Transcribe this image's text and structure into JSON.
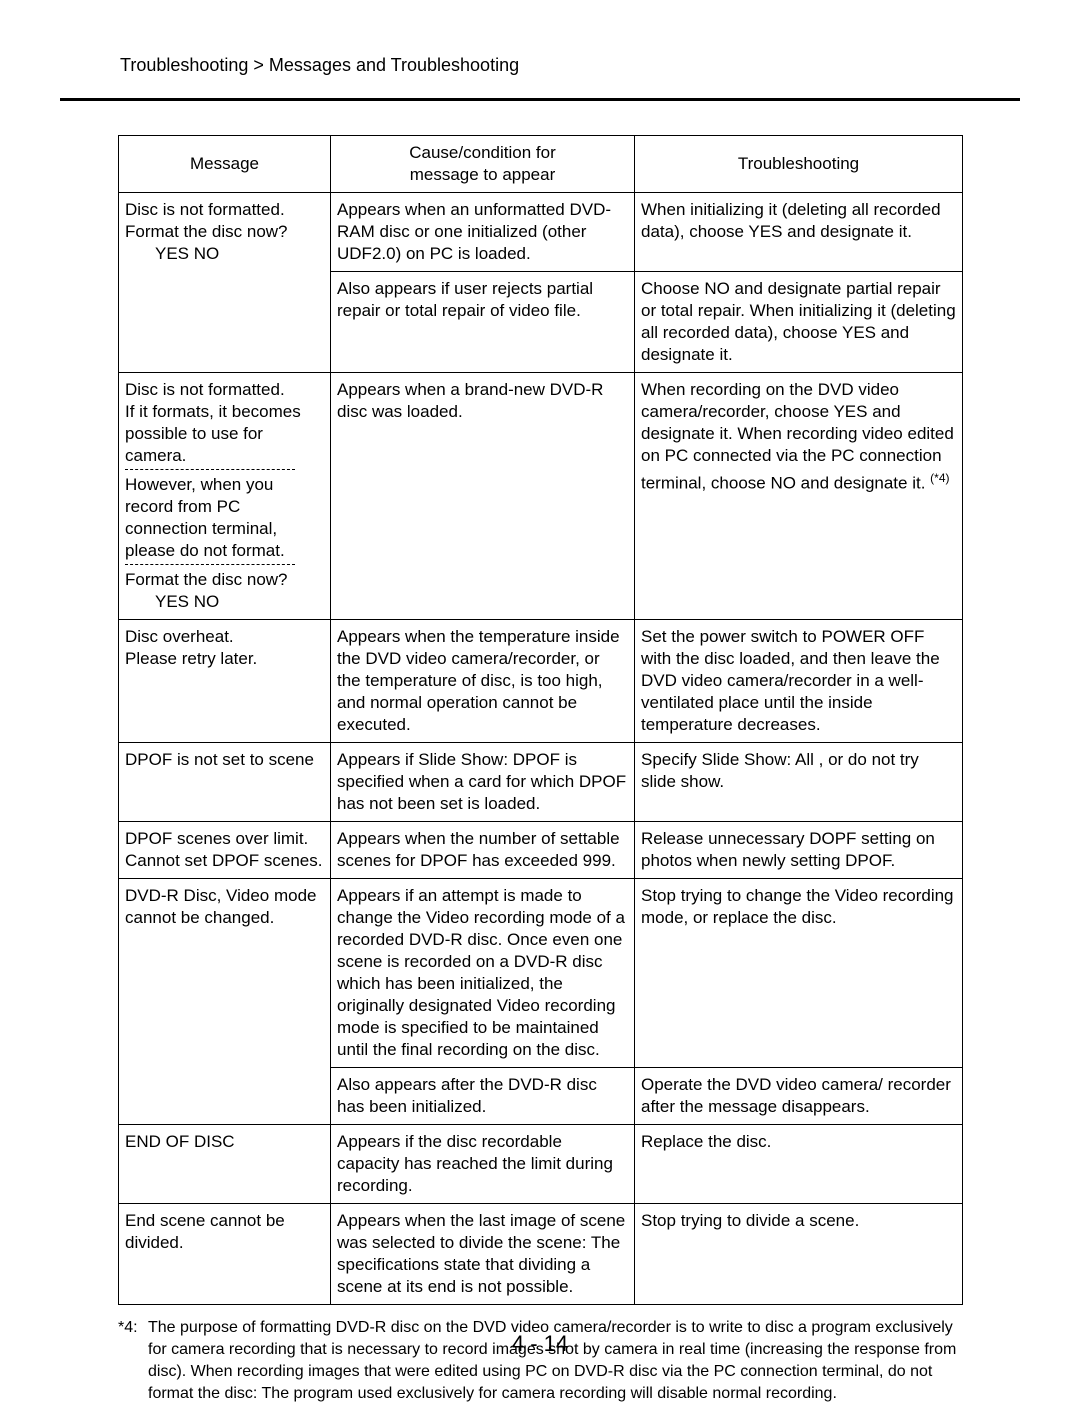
{
  "breadcrumb": "Troubleshooting > Messages and Troubleshooting",
  "headers": {
    "message": "Message",
    "cause_l1": "Cause/condition for",
    "cause_l2": "message to appear",
    "trouble": "Troubleshooting"
  },
  "rows": {
    "r1": {
      "msg_l1": "Disc is not formatted.",
      "msg_l2": "Format the disc now?",
      "msg_l3": "YES   NO",
      "cause": "Appears when an unformatted DVD-RAM disc or one initialized (other UDF2.0) on PC is loaded.",
      "trouble": "When initializing it (deleting all recorded data), choose  YES  and designate it."
    },
    "r1b": {
      "cause": "Also appears if user rejects partial repair or total repair of video file.",
      "trouble": "Choose  NO  and designate partial repair or total repair. When initializing it (deleting all recorded data), choose  YES  and designate it."
    },
    "r2": {
      "msg_p1_l1": "Disc is not formatted.",
      "msg_p1_l2": "If it formats, it becomes",
      "msg_p1_l3": "possible to use for camera.",
      "msg_p2_l1": "However, when you record from PC connection terminal, please do not format.",
      "msg_p3_l1": "Format the disc now?",
      "msg_p3_l2": "YES   NO",
      "cause": "Appears when a brand-new DVD-R disc was loaded.",
      "trouble_pre": "When recording on the DVD video camera/recorder, choose  YES  and designate it. When recording video edited on PC connected via the PC connection terminal, choose  NO  and designate it. ",
      "trouble_sup": "(*4)"
    },
    "r3": {
      "msg_l1": "Disc overheat.",
      "msg_l2": "Please retry later.",
      "cause": "Appears when the temperature inside the DVD video camera/recorder, or the temperature of disc, is too high, and normal operation cannot be executed.",
      "trouble": "Set the power switch to  POWER OFF  with the disc loaded, and then leave the DVD video camera/recorder in a well-ventilated place until the inside temperature decreases."
    },
    "r4": {
      "msg": "DPOF is not set to scene",
      "cause": "Appears if  Slide Show: DPOF  is specified when a card for which DPOF has not been set is loaded.",
      "trouble": "Specify  Slide Show: All , or do not try slide show."
    },
    "r5": {
      "msg_l1": "DPOF scenes over limit.",
      "msg_l2": "Cannot set DPOF scenes.",
      "cause": "Appears when the number of settable scenes for DPOF has exceeded 999.",
      "trouble": "Release unnecessary DOPF setting on photos when newly setting DPOF."
    },
    "r6": {
      "msg_l1": "DVD-R Disc, Video mode",
      "msg_l2": "cannot be changed.",
      "cause": "Appears if an attempt is made to change the Video recording mode of a recorded DVD-R disc. Once even one scene is recorded on a DVD-R disc which has been initialized, the originally designated Video recording mode is specified to be maintained until the final recording on the disc.",
      "trouble": "Stop trying to change the Video recording mode, or replace the disc."
    },
    "r6b": {
      "cause": "Also appears after the DVD-R disc has been initialized.",
      "trouble": "Operate the DVD video camera/ recorder after the message disappears."
    },
    "r7": {
      "msg": "END OF DISC",
      "cause": "Appears if the disc recordable capacity has reached the limit during recording.",
      "trouble": "Replace the disc."
    },
    "r8": {
      "msg": "End scene cannot be divided.",
      "cause": "Appears when the last image of scene was selected to divide the scene: The specifications state that dividing a scene at its end is not possible.",
      "trouble": "Stop trying to divide a scene."
    }
  },
  "footnote": {
    "label": "*4:",
    "text": "The purpose of formatting DVD-R disc on the DVD video camera/recorder is to write to disc a program exclusively for camera recording that is necessary to record images shot by camera in real time (increasing the response from disc). When recording images that were edited using PC on DVD-R disc via the PC connection terminal, do not format the disc: The program used exclusively for camera recording will disable normal recording."
  },
  "page_number": "4 - 14"
}
